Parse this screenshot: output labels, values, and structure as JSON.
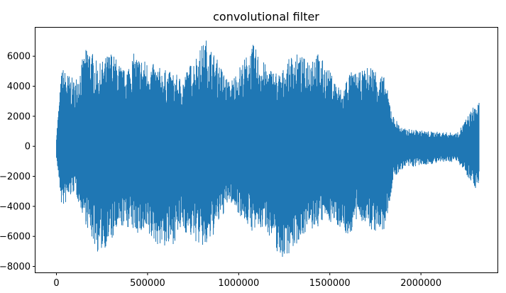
{
  "chart_data": {
    "type": "line",
    "title": "convolutional filter",
    "xlabel": "",
    "ylabel": "",
    "xlim": [
      -115000,
      2420000
    ],
    "ylim": [
      -8400,
      7900
    ],
    "x_ticks": [
      0,
      500000,
      1000000,
      1500000,
      2000000
    ],
    "x_tick_labels": [
      "0",
      "500000",
      "1000000",
      "1500000",
      "2000000"
    ],
    "y_ticks": [
      -8000,
      -6000,
      -4000,
      -2000,
      0,
      2000,
      4000,
      6000
    ],
    "y_tick_labels": [
      "−8000",
      "−6000",
      "−4000",
      "−2000",
      "0",
      "2000",
      "4000",
      "6000"
    ],
    "grid": false,
    "legend": "none",
    "series_color": "#1f77b4",
    "n_samples": 2320000,
    "series": [
      {
        "x": [
          0,
          30000,
          100000,
          175000,
          230000,
          300000,
          370000,
          425000,
          560000,
          620000,
          690000,
          820000,
          950000,
          1080000,
          1150000,
          1230000,
          1300000,
          1360000,
          1420000,
          1480000,
          1570000,
          1600000,
          1660000,
          1730000,
          1800000,
          1850000,
          1900000,
          2050000,
          2200000,
          2300000
        ],
        "upper": [
          800,
          5300,
          4400,
          6900,
          5400,
          6400,
          5100,
          6200,
          5300,
          5000,
          4600,
          7200,
          4300,
          6800,
          5400,
          4900,
          6300,
          5900,
          6500,
          5400,
          3700,
          5000,
          4900,
          5500,
          4600,
          2000,
          1200,
          1000,
          900,
          2900
        ],
        "lower": [
          -800,
          -4200,
          -3000,
          -5700,
          -7200,
          -6400,
          -5300,
          -5700,
          -6600,
          -6900,
          -5600,
          -7000,
          -3700,
          -5800,
          -5500,
          -7600,
          -6900,
          -5800,
          -5600,
          -4900,
          -5500,
          -6200,
          -4800,
          -5700,
          -5800,
          -2200,
          -1500,
          -1200,
          -1000,
          -2800
        ]
      }
    ]
  }
}
